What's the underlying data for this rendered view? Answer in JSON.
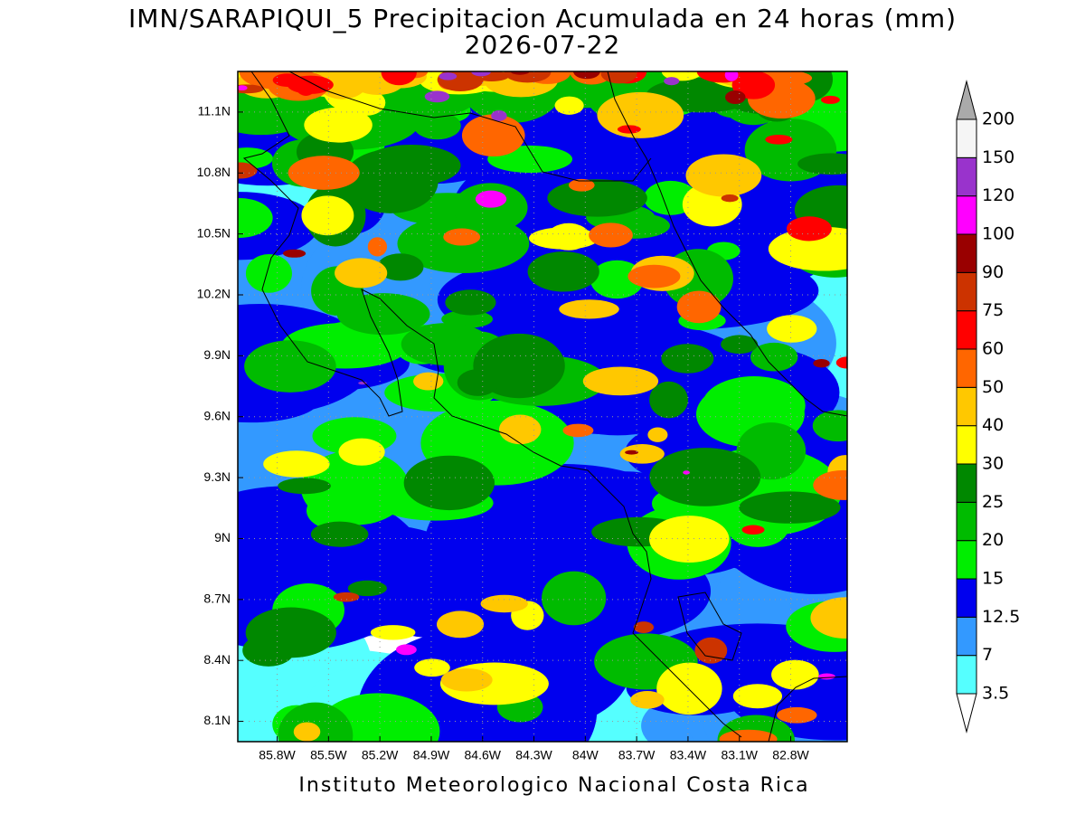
{
  "title": "IMN/SARAPIQUI_5 Precipitacion Acumulada en 24 horas (mm)",
  "subtitle": "2026-07-22",
  "footer": "Instituto Meteorologico Nacional Costa Rica",
  "map": {
    "xlim": [
      -86.03,
      -82.47
    ],
    "ylim": [
      8.0,
      11.3
    ],
    "xticks": [
      {
        "value": -85.8,
        "label": "85.8W"
      },
      {
        "value": -85.5,
        "label": "85.5W"
      },
      {
        "value": -85.2,
        "label": "85.2W"
      },
      {
        "value": -84.9,
        "label": "84.9W"
      },
      {
        "value": -84.6,
        "label": "84.6W"
      },
      {
        "value": -84.3,
        "label": "84.3W"
      },
      {
        "value": -84.0,
        "label": "84W"
      },
      {
        "value": -83.7,
        "label": "83.7W"
      },
      {
        "value": -83.4,
        "label": "83.4W"
      },
      {
        "value": -83.1,
        "label": "83.1W"
      },
      {
        "value": -82.8,
        "label": "82.8W"
      }
    ],
    "yticks": [
      {
        "value": 8.1,
        "label": "8.1N"
      },
      {
        "value": 8.4,
        "label": "8.4N"
      },
      {
        "value": 8.7,
        "label": "8.7N"
      },
      {
        "value": 9.0,
        "label": "9N"
      },
      {
        "value": 9.3,
        "label": "9.3N"
      },
      {
        "value": 9.6,
        "label": "9.6N"
      },
      {
        "value": 9.9,
        "label": "9.9N"
      },
      {
        "value": 10.2,
        "label": "10.2N"
      },
      {
        "value": 10.5,
        "label": "10.5N"
      },
      {
        "value": 10.8,
        "label": "10.8N"
      },
      {
        "value": 11.1,
        "label": "11.1N"
      }
    ],
    "colorbar": {
      "levels": [
        3.5,
        7,
        12.5,
        15,
        20,
        25,
        30,
        40,
        50,
        60,
        75,
        90,
        100,
        120,
        150,
        200
      ],
      "colors": [
        "#55ffff",
        "#3399ff",
        "#0000ee",
        "#00ee00",
        "#00bb00",
        "#008800",
        "#ffff00",
        "#ffc800",
        "#ff6600",
        "#ff0000",
        "#cc3300",
        "#990000",
        "#ff00ff",
        "#9933cc",
        "#f5f5f5"
      ],
      "under_color": "#ffffff",
      "over_color": "#aaaaaa"
    }
  }
}
